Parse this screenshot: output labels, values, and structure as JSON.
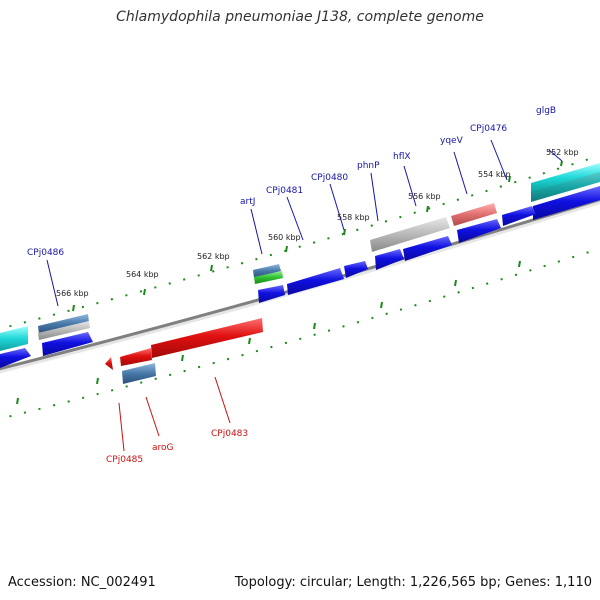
{
  "header": {
    "title": "Chlamydophila pneumoniae J138, complete genome"
  },
  "footer": {
    "accession": "Accession: NC_002491",
    "summary": "Topology: circular; Length: 1,226,565 bp; Genes: 1,110"
  },
  "colors": {
    "forward_gene": "#1010e0",
    "reverse_gene": "#e01010",
    "cyan_gene": "#20d8d8",
    "teal_gene": "#1aa8a8",
    "gray_gene": "#b8b8b8",
    "pink_gene": "#e07070",
    "steel_gene": "#4678a8",
    "green_gene": "#30c030",
    "tick": "#1a8a1a",
    "backbone": "#808080",
    "forward_label": "#1515aa",
    "reverse_label": "#cc1010"
  },
  "scale_labels": [
    "552 kbp",
    "554 kbp",
    "556 kbp",
    "558 kbp",
    "560 kbp",
    "562 kbp",
    "564 kbp",
    "566 kbp"
  ],
  "forward_labels": [
    "glgB",
    "CPj0476",
    "yqeV",
    "hflX",
    "phnP",
    "CPj0480",
    "CPj0481",
    "artJ",
    "CPj0486"
  ],
  "reverse_labels": [
    "CPj0483",
    "aroG",
    "CPj0485"
  ]
}
